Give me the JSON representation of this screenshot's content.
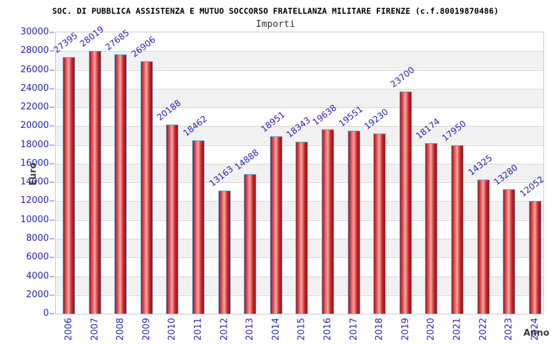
{
  "chart_data": {
    "type": "bar",
    "title": "SOC. DI PUBBLICA ASSISTENZA E MUTUO SOCCORSO FRATELLANZA MILITARE FIRENZE (c.f.80019870486)",
    "subtitle": "Importi",
    "xlabel": "Anno",
    "ylabel": "Euro",
    "categories": [
      "2006",
      "2007",
      "2008",
      "2009",
      "2010",
      "2011",
      "2012",
      "2013",
      "2014",
      "2015",
      "2016",
      "2017",
      "2018",
      "2019",
      "2020",
      "2021",
      "2022",
      "2023",
      "2024"
    ],
    "values": [
      27395,
      28019,
      27685,
      26906,
      20188,
      18462,
      13163,
      14888,
      18951,
      18343,
      19638,
      19551,
      19230,
      23700,
      18174,
      17950,
      14325,
      13280,
      12052
    ],
    "ylim": [
      0,
      30000
    ],
    "ytick_step": 2000,
    "grid": "horizontal",
    "legend": "none",
    "value_labels": "rotated above bars",
    "x_tick_rotation": -90,
    "colors": {
      "label_text": "#2424b4",
      "axis_title_text": "#3c3c3c",
      "title_text": "#000000",
      "bar_border": "#64a0dc",
      "bar_gradient": [
        "#a81418",
        "#e05858",
        "#f5a6a6",
        "#cc2828",
        "#951014"
      ],
      "gridline": "#d6d6d6",
      "band": "#f1f1f1",
      "plot_border": "#c8c8c8",
      "tick": "#b0b0e0"
    }
  }
}
